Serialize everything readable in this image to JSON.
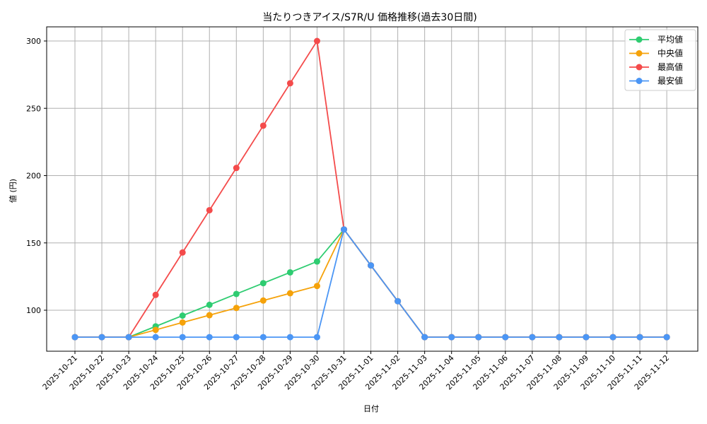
{
  "chart_data": {
    "type": "line",
    "title": "当たりつきアイス/S7R/U 価格推移(過去30日間)",
    "xlabel": "日付",
    "ylabel": "値 (円)",
    "ylim": [
      70,
      310
    ],
    "yticks": [
      100,
      150,
      200,
      250,
      300
    ],
    "grid": true,
    "legend_position": "upper right",
    "categories": [
      "2025-10-21",
      "2025-10-22",
      "2025-10-23",
      "2025-10-24",
      "2025-10-25",
      "2025-10-26",
      "2025-10-27",
      "2025-10-28",
      "2025-10-29",
      "2025-10-30",
      "2025-10-31",
      "2025-11-01",
      "2025-11-02",
      "2025-11-03",
      "2025-11-04",
      "2025-11-05",
      "2025-11-06",
      "2025-11-07",
      "2025-11-08",
      "2025-11-09",
      "2025-11-10",
      "2025-11-11",
      "2025-11-12"
    ],
    "series": [
      {
        "name": "平均値",
        "color": "#2ecc71",
        "values": [
          80,
          80,
          80,
          88.0,
          96.0,
          104.0,
          112.1,
          120.1,
          128.1,
          136.2,
          160,
          133.3,
          106.7,
          80,
          80,
          80,
          80,
          80,
          80,
          80,
          80,
          80,
          80
        ]
      },
      {
        "name": "中央値",
        "color": "#f5a20a",
        "values": [
          80,
          80,
          80,
          85.4,
          90.9,
          96.3,
          101.7,
          107.2,
          112.6,
          118.0,
          160,
          133.3,
          106.7,
          80,
          80,
          80,
          80,
          80,
          80,
          80,
          80,
          80,
          80
        ]
      },
      {
        "name": "最高値",
        "color": "#f44b4b",
        "values": [
          80,
          80,
          80,
          111.4,
          142.9,
          174.3,
          205.7,
          237.1,
          268.6,
          300,
          160,
          133.3,
          106.7,
          80,
          80,
          80,
          80,
          80,
          80,
          80,
          80,
          80,
          80
        ]
      },
      {
        "name": "最安値",
        "color": "#4b96f5",
        "values": [
          80,
          80,
          80,
          80,
          80,
          80,
          80,
          80,
          80,
          80,
          160,
          133.3,
          106.7,
          80,
          80,
          80,
          80,
          80,
          80,
          80,
          80,
          80,
          80
        ]
      }
    ]
  },
  "colors": {
    "grid": "#b0b0b0",
    "axis": "#000000",
    "legend_border": "#cccccc"
  }
}
